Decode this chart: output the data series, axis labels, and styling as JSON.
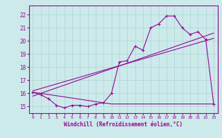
{
  "xlabel": "Windchill (Refroidissement éolien,°C)",
  "xlim": [
    -0.5,
    23.5
  ],
  "ylim": [
    14.5,
    22.7
  ],
  "yticks": [
    15,
    16,
    17,
    18,
    19,
    20,
    21,
    22
  ],
  "xticks": [
    0,
    1,
    2,
    3,
    4,
    5,
    6,
    7,
    8,
    9,
    10,
    11,
    12,
    13,
    14,
    15,
    16,
    17,
    18,
    19,
    20,
    21,
    22,
    23
  ],
  "bg_color": "#cceaea",
  "line_color": "#990099",
  "grid_color": "#aad4d4",
  "line1_x": [
    0,
    1,
    2,
    3,
    4,
    5,
    6,
    7,
    8,
    9,
    10,
    11,
    12,
    13,
    14,
    15,
    16,
    17,
    18,
    19,
    20,
    21,
    22,
    23
  ],
  "line1_y": [
    16.1,
    15.9,
    15.6,
    15.1,
    14.9,
    15.1,
    15.1,
    15.0,
    15.2,
    15.3,
    16.0,
    18.4,
    18.5,
    19.6,
    19.3,
    21.0,
    21.3,
    21.9,
    21.9,
    21.0,
    20.5,
    20.7,
    20.1,
    15.2
  ],
  "line2_x": [
    0,
    23
  ],
  "line2_y": [
    15.8,
    20.6
  ],
  "line3_x": [
    0,
    23
  ],
  "line3_y": [
    16.2,
    20.2
  ],
  "line4_x": [
    0,
    10,
    22,
    23
  ],
  "line4_y": [
    16.1,
    15.2,
    15.2,
    15.2
  ]
}
